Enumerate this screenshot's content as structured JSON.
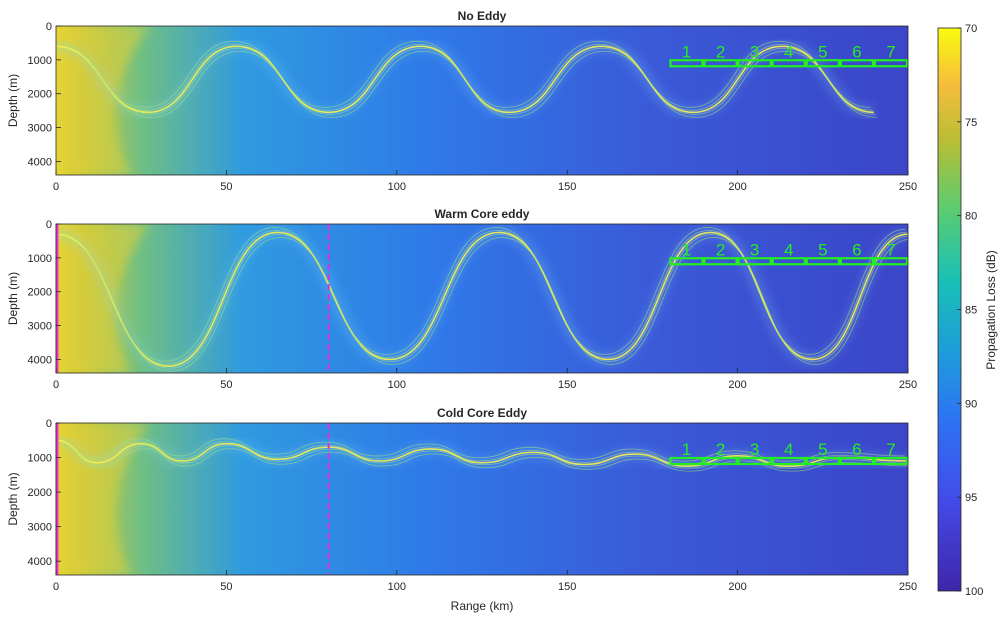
{
  "chart_data": [
    {
      "type": "heatmap",
      "title": "No Eddy",
      "xlabel": "",
      "ylabel": "Depth (m)",
      "xlim": [
        0,
        250
      ],
      "ylim": [
        0,
        4400
      ],
      "y_reversed": true,
      "xticks": [
        0,
        50,
        100,
        150,
        200,
        250
      ],
      "yticks": [
        0,
        1000,
        2000,
        3000,
        4000
      ],
      "eddy": "none",
      "ray_path": {
        "x": [
          0,
          27,
          53,
          80,
          107,
          133,
          160,
          187,
          213,
          240
        ],
        "depth": [
          600,
          2550,
          600,
          2550,
          600,
          2550,
          600,
          2550,
          600,
          2550
        ]
      },
      "receivers": {
        "labels": [
          "1",
          "2",
          "3",
          "4",
          "5",
          "6",
          "7"
        ],
        "range_start": 180,
        "range_end": 250,
        "depth": 1100
      }
    },
    {
      "type": "heatmap",
      "title": "Warm Core eddy",
      "xlabel": "",
      "ylabel": "Depth (m)",
      "xlim": [
        0,
        250
      ],
      "ylim": [
        0,
        4400
      ],
      "y_reversed": true,
      "xticks": [
        0,
        50,
        100,
        150,
        200,
        250
      ],
      "yticks": [
        0,
        1000,
        2000,
        3000,
        4000
      ],
      "eddy": "warm",
      "eddy_boundary_range": 80,
      "ray_path": {
        "x": [
          0,
          33,
          65,
          98,
          130,
          162,
          192,
          222,
          250
        ],
        "depth": [
          300,
          4200,
          250,
          4000,
          250,
          4000,
          250,
          4000,
          300
        ]
      },
      "receivers": {
        "labels": [
          "1",
          "2",
          "3",
          "4",
          "5",
          "6",
          "7"
        ],
        "range_start": 180,
        "range_end": 250,
        "depth": 1100
      }
    },
    {
      "type": "heatmap",
      "title": "Cold Core Eddy",
      "xlabel": "Range (km)",
      "ylabel": "Depth (m)",
      "xlim": [
        0,
        250
      ],
      "ylim": [
        0,
        4400
      ],
      "y_reversed": true,
      "xticks": [
        0,
        50,
        100,
        150,
        200,
        250
      ],
      "yticks": [
        0,
        1000,
        2000,
        3000,
        4000
      ],
      "eddy": "cold",
      "eddy_boundary_range": 80,
      "ray_path": {
        "x": [
          0,
          12,
          25,
          37,
          50,
          65,
          80,
          95,
          110,
          125,
          140,
          155,
          170,
          185,
          200,
          215,
          230,
          250
        ],
        "depth": [
          500,
          1150,
          600,
          1100,
          600,
          1050,
          700,
          1100,
          750,
          1150,
          850,
          1200,
          900,
          1250,
          950,
          1250,
          1000,
          1100
        ]
      },
      "receivers": {
        "labels": [
          "1",
          "2",
          "3",
          "4",
          "5",
          "6",
          "7"
        ],
        "range_start": 180,
        "range_end": 250,
        "depth": 1100
      }
    }
  ],
  "colorbar": {
    "label": "Propagation Loss (dB)",
    "ticks": [
      70,
      75,
      80,
      85,
      90,
      95,
      100
    ],
    "range": [
      70,
      100
    ],
    "colormap": "parula",
    "colors": [
      "#f9fb0e",
      "#fcbb3e",
      "#a5be32",
      "#19c0b6",
      "#1e8ddc",
      "#3e5bf0",
      "#3e26a8"
    ]
  },
  "colors": {
    "receiver": "#22ee22",
    "source": "#ee33cc",
    "eddy_line": "#d633e0",
    "background": "#3a43c9",
    "ray": "#e8e84a"
  }
}
